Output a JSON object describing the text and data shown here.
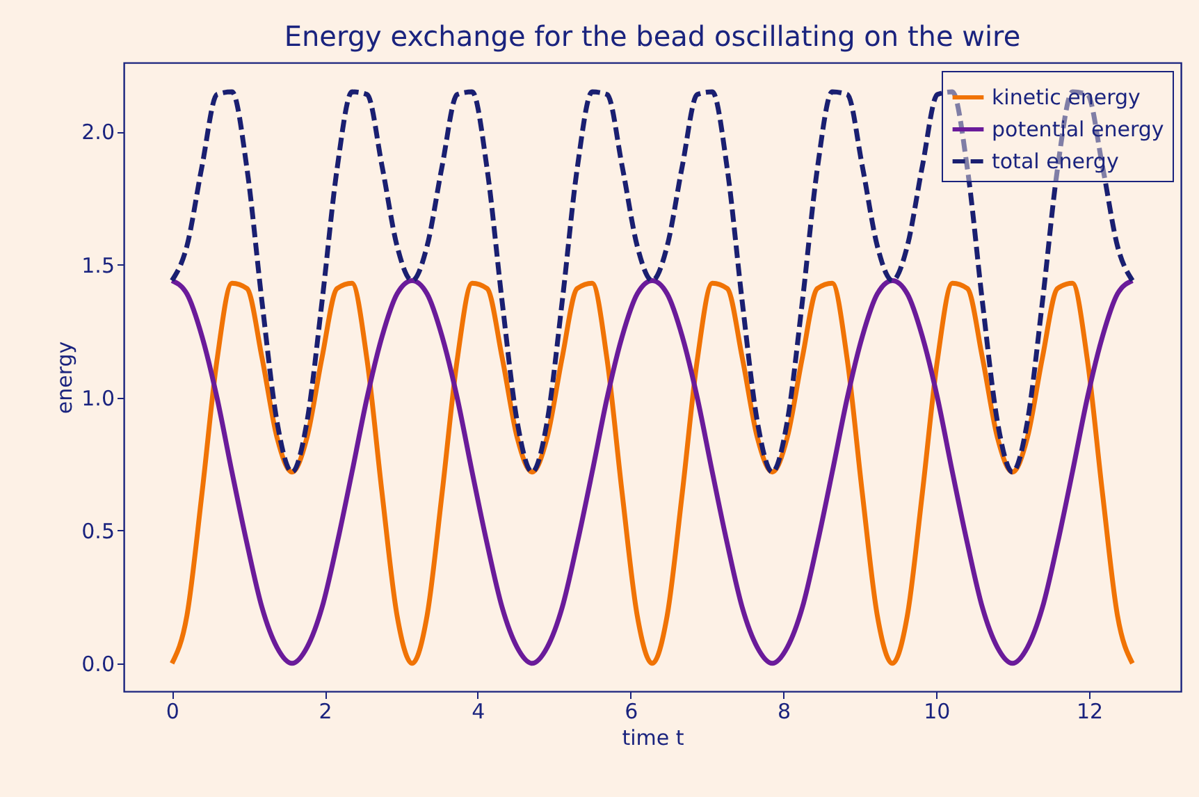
{
  "chart_data": {
    "type": "line",
    "title": "Energy exchange for the bead oscillating on the wire",
    "xlabel": "time  t",
    "ylabel": "energy",
    "x": [
      0,
      0.196,
      0.393,
      0.589,
      0.785,
      0.982,
      1.178,
      1.374,
      1.571,
      1.767,
      1.963,
      2.16,
      2.356,
      2.553,
      2.749,
      2.945,
      3.142,
      3.338,
      3.534,
      3.731,
      3.927,
      4.123,
      4.32,
      4.516,
      4.712,
      4.909,
      5.105,
      5.301,
      5.498,
      5.694,
      5.89,
      6.087,
      6.283,
      6.479,
      6.676,
      6.872,
      7.069,
      7.265,
      7.461,
      7.658,
      7.854,
      8.05,
      8.247,
      8.443,
      8.639,
      8.836,
      9.032,
      9.228,
      9.425,
      9.621,
      9.817,
      10.014,
      10.21,
      10.407,
      10.603,
      10.799,
      10.996,
      11.192,
      11.388,
      11.585,
      11.781,
      11.977,
      12.174,
      12.37,
      12.566
    ],
    "series": [
      {
        "name": "kinetic energy",
        "color": "#f07305",
        "line_style": "solid",
        "values": [
          0,
          0.18,
          0.64,
          1.14,
          1.43,
          1.41,
          1.15,
          0.85,
          0.72,
          0.85,
          1.15,
          1.41,
          1.43,
          1.14,
          0.64,
          0.18,
          0,
          0.18,
          0.64,
          1.14,
          1.43,
          1.41,
          1.15,
          0.85,
          0.72,
          0.85,
          1.15,
          1.41,
          1.43,
          1.14,
          0.64,
          0.18,
          0,
          0.18,
          0.64,
          1.14,
          1.43,
          1.41,
          1.15,
          0.85,
          0.72,
          0.85,
          1.15,
          1.41,
          1.43,
          1.14,
          0.64,
          0.18,
          0,
          0.18,
          0.64,
          1.14,
          1.43,
          1.41,
          1.15,
          0.85,
          0.72,
          0.85,
          1.15,
          1.41,
          1.43,
          1.14,
          0.64,
          0.18,
          0
        ]
      },
      {
        "name": "potential energy",
        "color": "#6a1b9a",
        "line_style": "solid",
        "values": [
          1.44,
          1.39,
          1.23,
          1.0,
          0.72,
          0.45,
          0.21,
          0.06,
          0,
          0.06,
          0.21,
          0.45,
          0.72,
          1.0,
          1.23,
          1.39,
          1.44,
          1.39,
          1.23,
          1.0,
          0.72,
          0.45,
          0.21,
          0.06,
          0,
          0.06,
          0.21,
          0.45,
          0.72,
          1.0,
          1.23,
          1.39,
          1.44,
          1.39,
          1.23,
          1.0,
          0.72,
          0.45,
          0.21,
          0.06,
          0,
          0.06,
          0.21,
          0.45,
          0.72,
          1.0,
          1.23,
          1.39,
          1.44,
          1.39,
          1.23,
          1.0,
          0.72,
          0.45,
          0.21,
          0.06,
          0,
          0.06,
          0.21,
          0.45,
          0.72,
          1.0,
          1.23,
          1.39,
          1.44
        ]
      },
      {
        "name": "total energy",
        "color": "#1a1f71",
        "line_style": "dashed",
        "values": [
          1.44,
          1.57,
          1.87,
          2.14,
          2.15,
          1.86,
          1.36,
          0.91,
          0.72,
          0.91,
          1.36,
          1.86,
          2.15,
          2.14,
          1.87,
          1.57,
          1.44,
          1.57,
          1.87,
          2.14,
          2.15,
          1.86,
          1.36,
          0.91,
          0.72,
          0.91,
          1.36,
          1.86,
          2.15,
          2.14,
          1.87,
          1.57,
          1.44,
          1.57,
          1.87,
          2.14,
          2.15,
          1.86,
          1.36,
          0.91,
          0.72,
          0.91,
          1.36,
          1.86,
          2.15,
          2.14,
          1.87,
          1.57,
          1.44,
          1.57,
          1.87,
          2.14,
          2.15,
          1.86,
          1.36,
          0.91,
          0.72,
          0.91,
          1.36,
          1.86,
          2.15,
          2.14,
          1.87,
          1.57,
          1.44
        ]
      }
    ],
    "xlim": [
      -0.63,
      13.2
    ],
    "xticks": [
      0,
      2,
      4,
      6,
      8,
      10,
      12
    ],
    "ylim": [
      -0.105,
      2.26
    ],
    "yticks": [
      {
        "value": 0,
        "label": "0.0"
      },
      0.5,
      {
        "value": 1,
        "label": "1.0"
      },
      1.5,
      {
        "value": 2,
        "label": "2.0"
      }
    ],
    "legend": "top right",
    "grid": false
  }
}
